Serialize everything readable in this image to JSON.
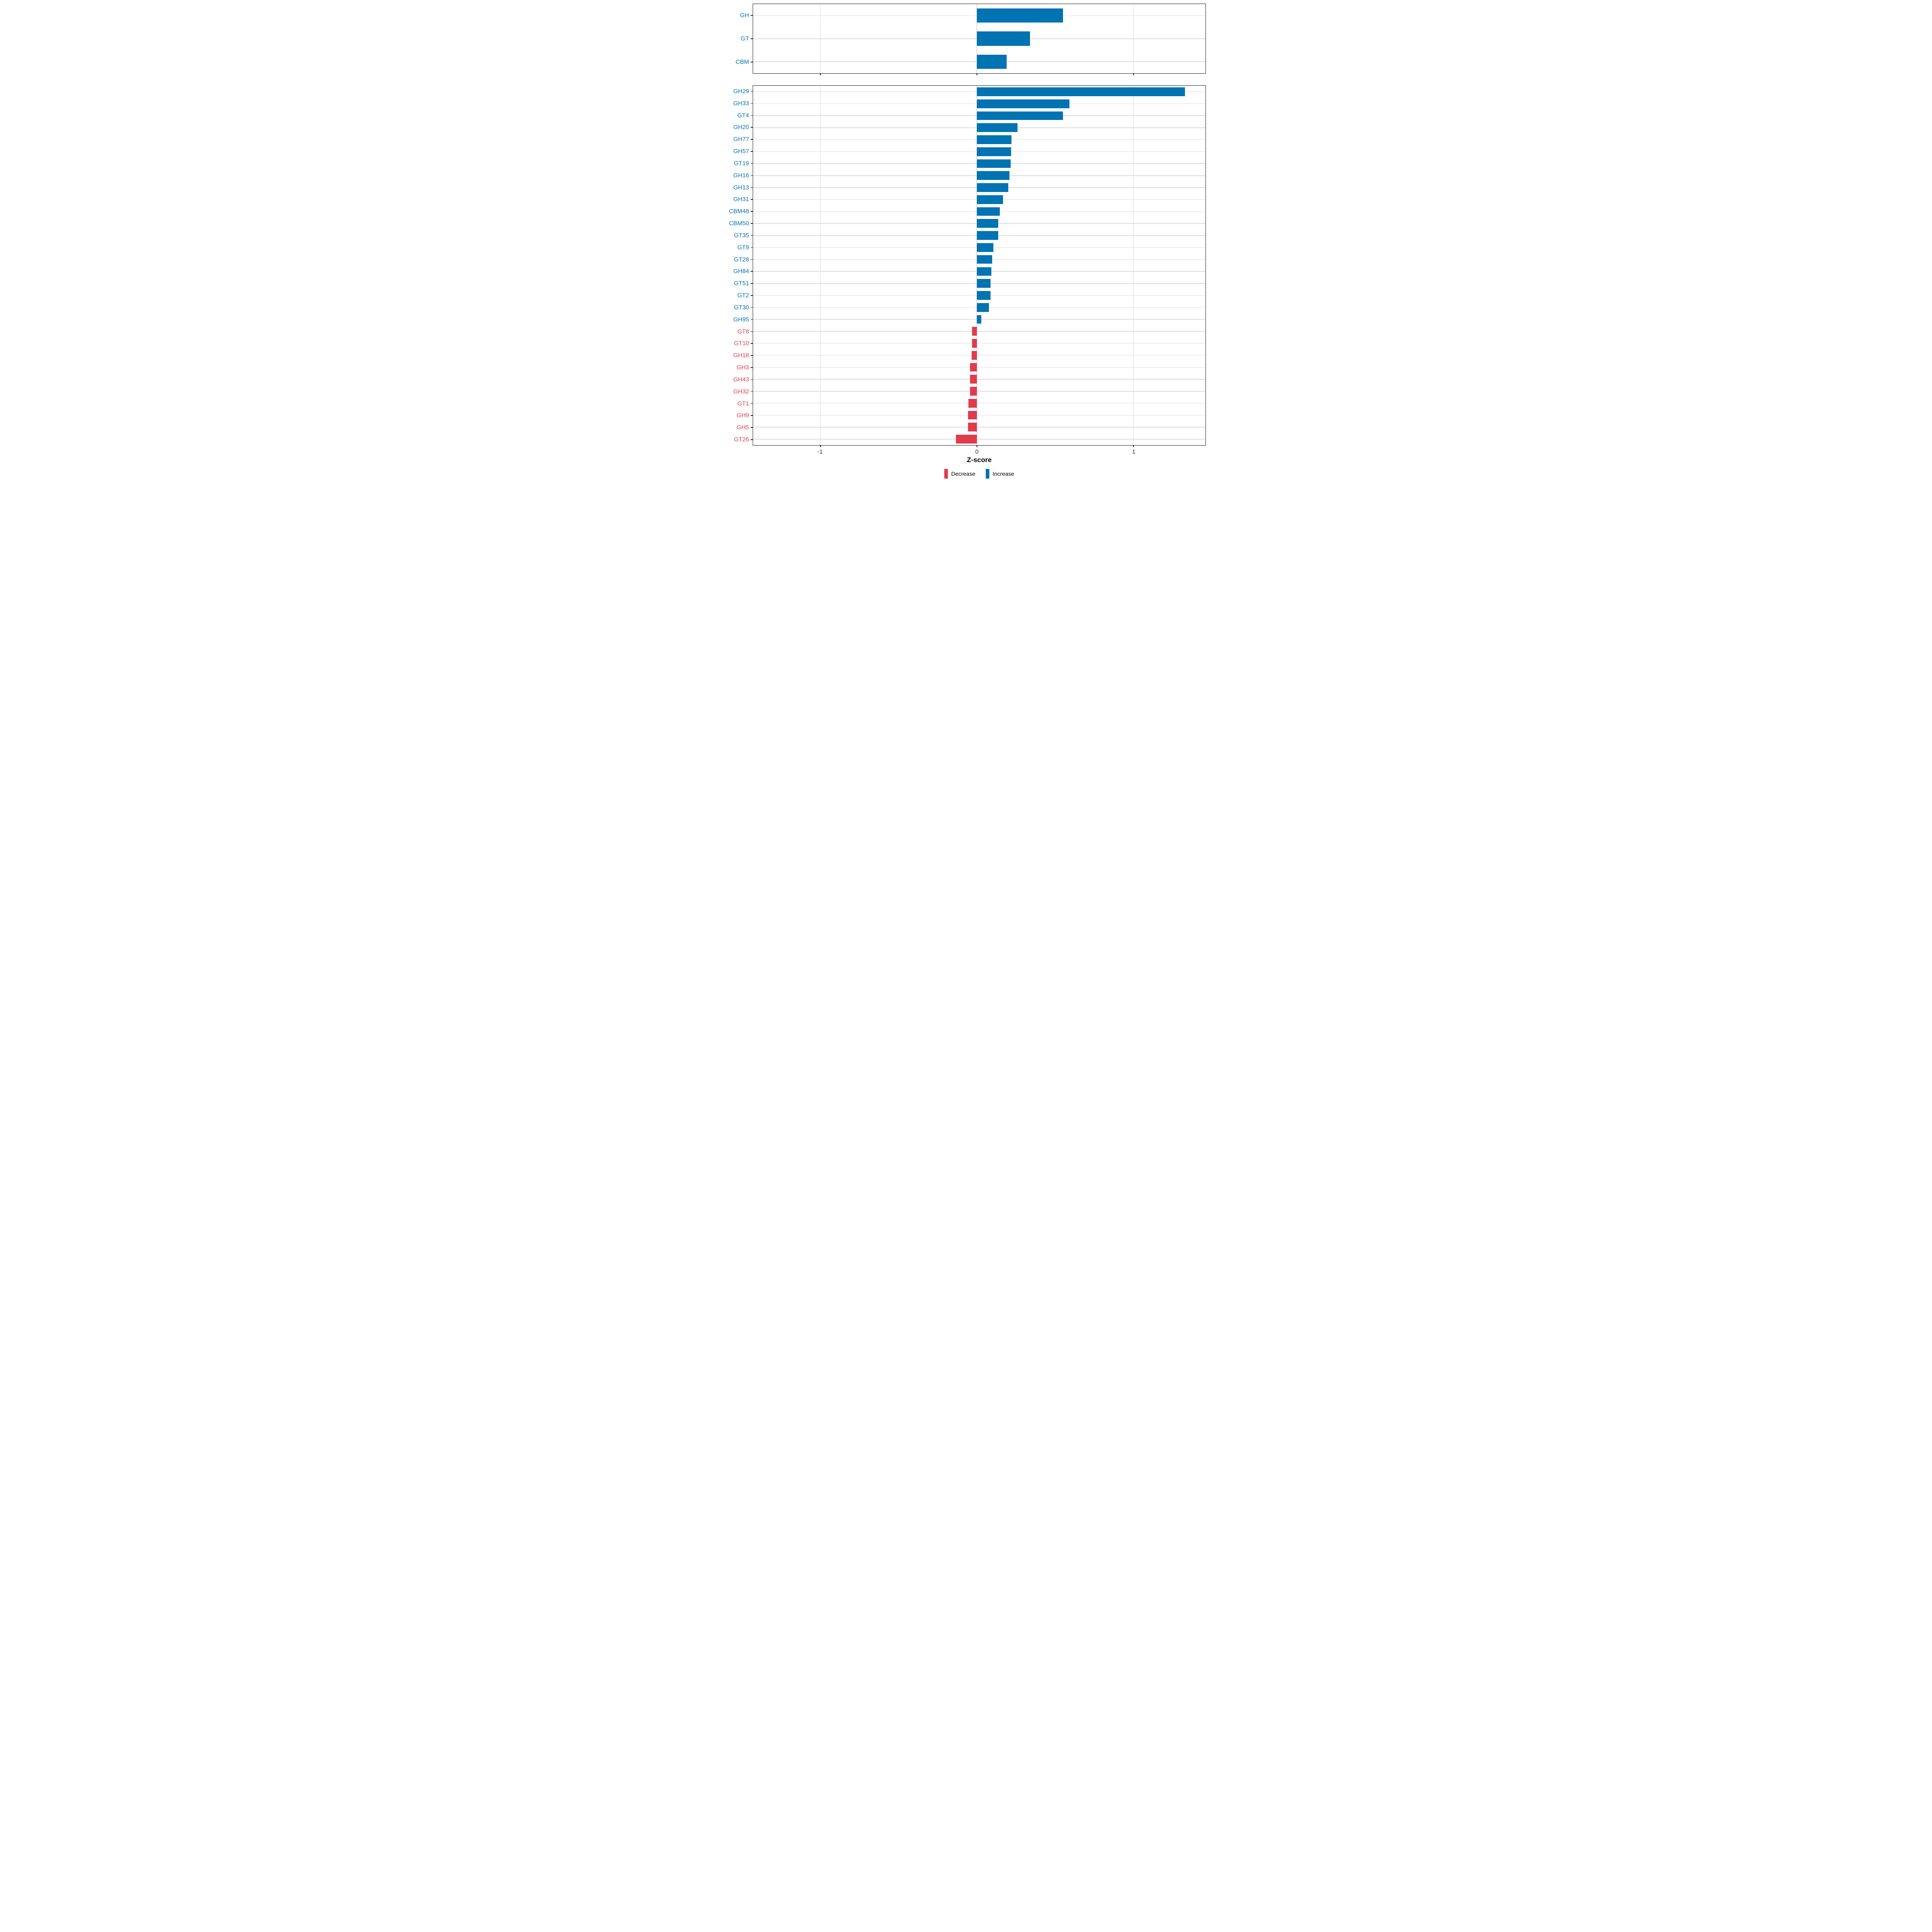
{
  "chart_data": {
    "type": "bar",
    "orientation": "horizontal",
    "title": "",
    "xlabel": "Z-score",
    "ylabel": "",
    "xlim": [
      -1.43,
      1.46
    ],
    "grid": true,
    "legend_position": "bottom",
    "colors": {
      "increase": "#0073b3",
      "decrease": "#e23b4c",
      "gridline": "#dcdcdc",
      "panel_border": "#1a1a1a",
      "tick_label": "#333333"
    },
    "x_ticks": [
      {
        "value": -1,
        "label": "-1"
      },
      {
        "value": 0,
        "label": "0"
      },
      {
        "value": 1,
        "label": "1"
      }
    ],
    "legend": [
      {
        "label": "Decrease",
        "key": "decrease"
      },
      {
        "label": "Increase",
        "key": "increase"
      }
    ],
    "panels": [
      {
        "name": "cazy-classes",
        "items": [
          {
            "category": "GH",
            "value": 0.55
          },
          {
            "category": "GT",
            "value": 0.34
          },
          {
            "category": "CBM",
            "value": 0.19
          }
        ]
      },
      {
        "name": "cazy-families",
        "items": [
          {
            "category": "GH29",
            "value": 1.33
          },
          {
            "category": "GH33",
            "value": 0.59
          },
          {
            "category": "GT4",
            "value": 0.55
          },
          {
            "category": "GH20",
            "value": 0.26
          },
          {
            "category": "GH77",
            "value": 0.221
          },
          {
            "category": "GH57",
            "value": 0.219
          },
          {
            "category": "GT19",
            "value": 0.215
          },
          {
            "category": "GH16",
            "value": 0.208
          },
          {
            "category": "GH13",
            "value": 0.2
          },
          {
            "category": "GH31",
            "value": 0.166
          },
          {
            "category": "CBM48",
            "value": 0.146
          },
          {
            "category": "CBM50",
            "value": 0.137
          },
          {
            "category": "GT35",
            "value": 0.136
          },
          {
            "category": "GT9",
            "value": 0.105
          },
          {
            "category": "GT28",
            "value": 0.097
          },
          {
            "category": "GH84",
            "value": 0.093
          },
          {
            "category": "GT51",
            "value": 0.088
          },
          {
            "category": "GT2",
            "value": 0.086
          },
          {
            "category": "GT30",
            "value": 0.077
          },
          {
            "category": "GH95",
            "value": 0.027
          },
          {
            "category": "GT8",
            "value": -0.032
          },
          {
            "category": "GT10",
            "value": -0.032
          },
          {
            "category": "GH18",
            "value": -0.033
          },
          {
            "category": "GH3",
            "value": -0.043
          },
          {
            "category": "GH43",
            "value": -0.044
          },
          {
            "category": "GH32",
            "value": -0.045
          },
          {
            "category": "GT1",
            "value": -0.055
          },
          {
            "category": "GH9",
            "value": -0.056
          },
          {
            "category": "GH5",
            "value": -0.057
          },
          {
            "category": "GT26",
            "value": -0.133
          }
        ]
      }
    ]
  }
}
